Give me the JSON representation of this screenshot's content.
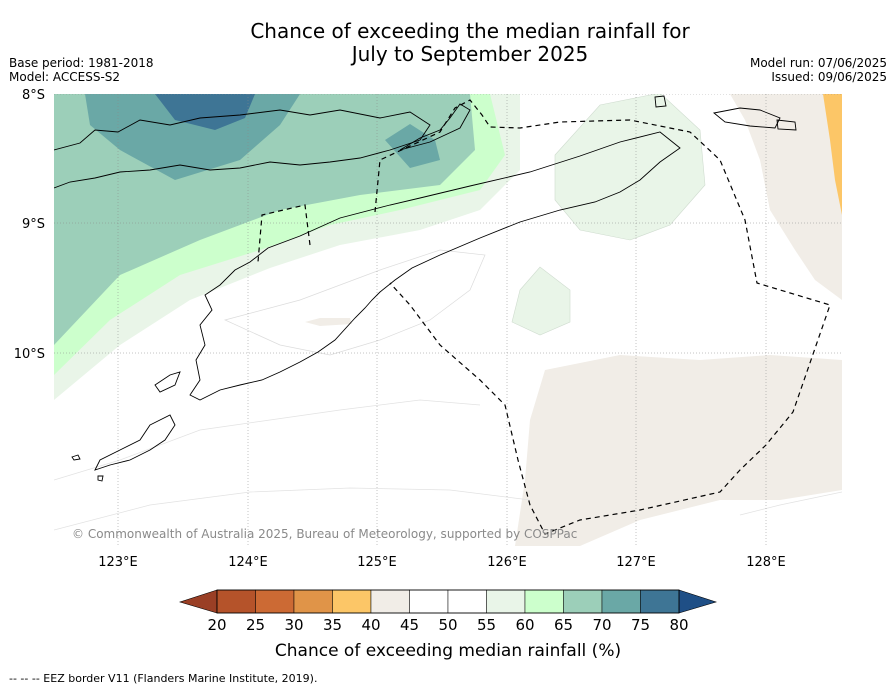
{
  "title_line1": "Chance of exceeding the median rainfall for",
  "title_line2": "July to September 2025",
  "base_period": "Base period: 1981-2018",
  "model": "Model: ACCESS-S2",
  "model_run": "Model run: 07/06/2025",
  "issued": "Issued: 09/06/2025",
  "copyright": "© Commonwealth of Australia 2025, Bureau of Meteorology, supported by COSPPac",
  "lat_labels": [
    "8°S",
    "9°S",
    "10°S"
  ],
  "lon_labels": [
    "123°E",
    "124°E",
    "125°E",
    "126°E",
    "127°E",
    "128°E"
  ],
  "colorbar": {
    "title": "Chance of exceeding median rainfall (%)",
    "ticks": [
      "20",
      "25",
      "30",
      "35",
      "40",
      "45",
      "50",
      "55",
      "60",
      "65",
      "70",
      "75",
      "80"
    ],
    "colors": [
      "#b5532a",
      "#cc6a34",
      "#e09448",
      "#fcc667",
      "#f1ede7",
      "#ffffff",
      "#ffffff",
      "#e9f5e8",
      "#ccffcc",
      "#9ccfb9",
      "#6aa8a6",
      "#3e7595"
    ],
    "under_color": "#9a3f25",
    "over_color": "#1f4f86"
  },
  "footer": "--  --  -- EEZ border V11 (Flanders Marine Institute, 2019)."
}
